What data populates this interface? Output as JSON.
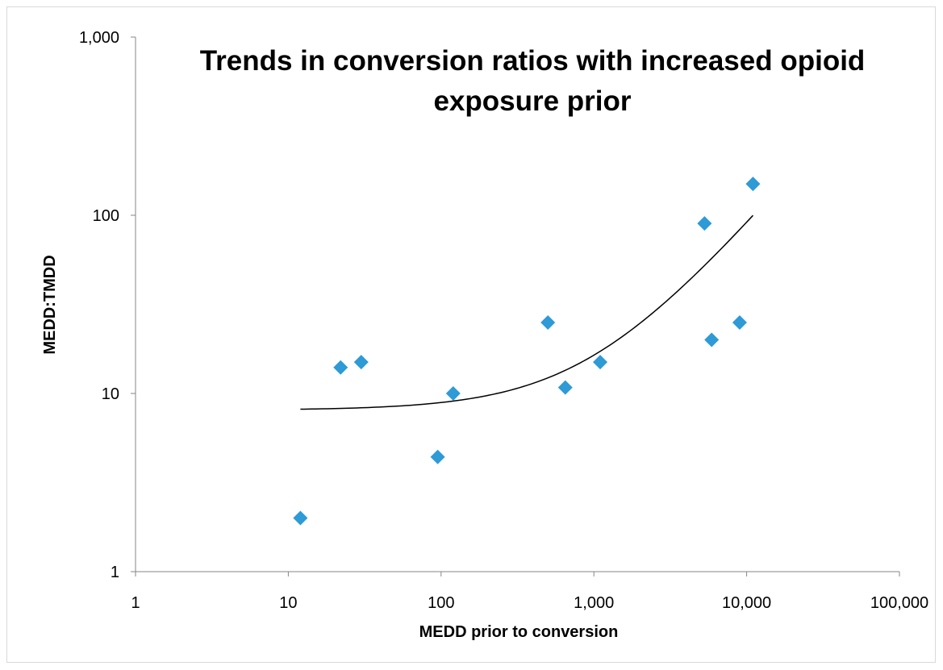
{
  "chart_data": {
    "type": "scatter",
    "title_lines": [
      "Trends in conversion ratios with increased opioid",
      "exposure prior"
    ],
    "xlabel": "MEDD prior to conversion",
    "ylabel": "MEDD:TMDD",
    "x_scale": "log",
    "y_scale": "log",
    "xlim": [
      1,
      100000
    ],
    "ylim": [
      1,
      1000
    ],
    "x_ticks": [
      1,
      10,
      100,
      1000,
      10000,
      100000
    ],
    "x_tick_labels": [
      "1",
      "10",
      "100",
      "1,000",
      "10,000",
      "100,000"
    ],
    "y_ticks": [
      1,
      10,
      100,
      1000
    ],
    "y_tick_labels": [
      "1",
      "10",
      "100",
      "1,000"
    ],
    "grid": false,
    "legend": "none",
    "marker_color": "#2e9ad6",
    "marker": "diamond",
    "points": [
      {
        "x": 12,
        "y": 2
      },
      {
        "x": 22,
        "y": 14
      },
      {
        "x": 30,
        "y": 15
      },
      {
        "x": 95,
        "y": 4.4
      },
      {
        "x": 120,
        "y": 10
      },
      {
        "x": 500,
        "y": 25
      },
      {
        "x": 650,
        "y": 10.8
      },
      {
        "x": 1100,
        "y": 15
      },
      {
        "x": 5300,
        "y": 90
      },
      {
        "x": 5900,
        "y": 20
      },
      {
        "x": 9000,
        "y": 25
      },
      {
        "x": 11000,
        "y": 150
      }
    ],
    "trendline": {
      "type": "linear",
      "color": "#000000",
      "intercept": 8.06,
      "slope": 0.00834,
      "x_range": [
        12,
        11000
      ]
    }
  }
}
